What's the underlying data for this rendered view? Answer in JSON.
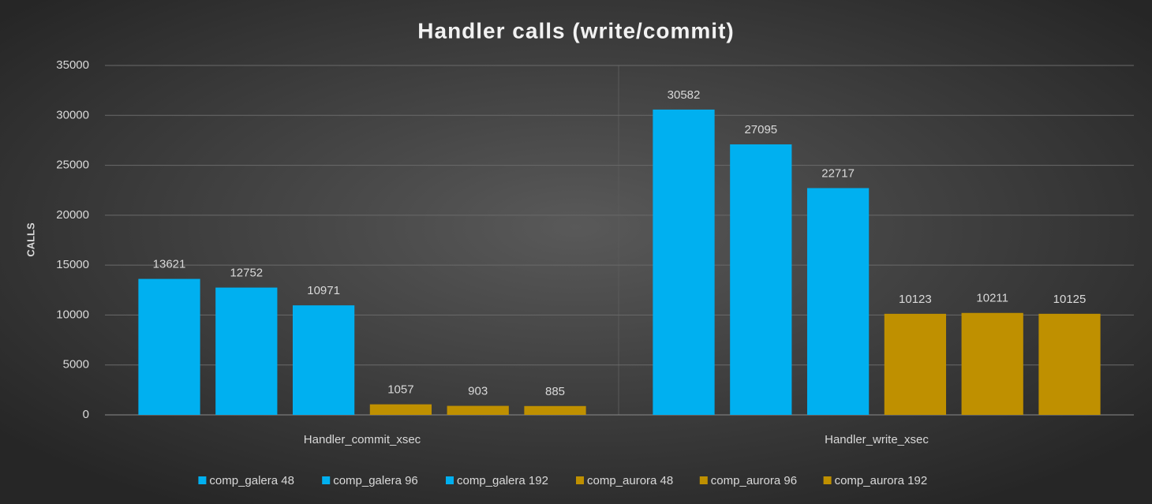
{
  "chart_data": {
    "type": "bar",
    "title": "Handler calls (write/commit)",
    "y_label": "CALLS",
    "categories": [
      "Handler_commit_xsec",
      "Handler_write_xsec"
    ],
    "series": [
      {
        "name": "comp_galera 48",
        "color": "#00b0f0",
        "values": [
          13621,
          30582
        ]
      },
      {
        "name": "comp_galera 96",
        "color": "#00b0f0",
        "values": [
          12752,
          27095
        ]
      },
      {
        "name": "comp_galera 192",
        "color": "#00b0f0",
        "values": [
          10971,
          22717
        ]
      },
      {
        "name": "comp_aurora 48",
        "color": "#bf9000",
        "values": [
          1057,
          10123
        ]
      },
      {
        "name": "comp_aurora 96",
        "color": "#bf9000",
        "values": [
          903,
          10211
        ]
      },
      {
        "name": "comp_aurora 192",
        "color": "#bf9000",
        "values": [
          885,
          10125
        ]
      }
    ],
    "ylim": [
      0,
      35000
    ],
    "yticks": [
      0,
      5000,
      10000,
      15000,
      20000,
      25000,
      30000,
      35000
    ],
    "grid": true,
    "legend": "bottom"
  }
}
